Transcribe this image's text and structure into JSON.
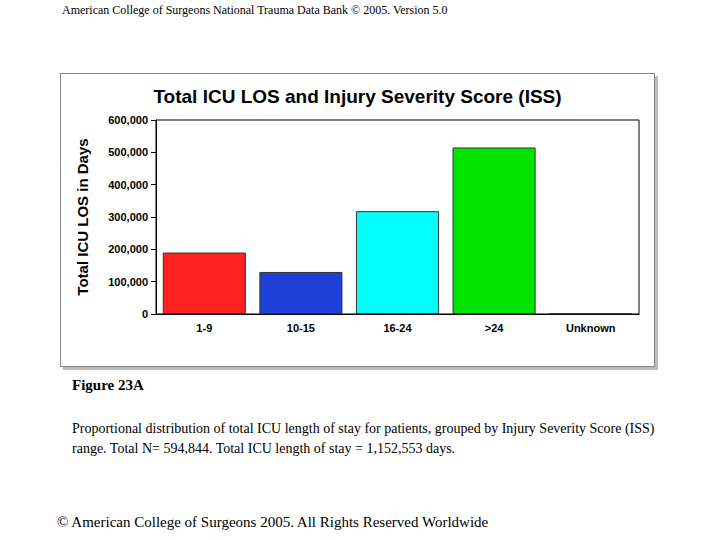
{
  "header": "American College of Surgeons National Trauma Data Bank © 2005. Version 5.0",
  "chart_data": {
    "type": "bar",
    "title": "Total ICU LOS and Injury Severity Score (ISS)",
    "y_label": "Total ICU LOS in Days",
    "categories": [
      "1-9",
      "10-15",
      "16-24",
      ">24",
      "Unknown"
    ],
    "values": [
      190000,
      130000,
      318000,
      515000,
      2000
    ],
    "colors": [
      "#ff2020",
      "#1e3ed8",
      "#00ffff",
      "#00e400",
      "#404040"
    ],
    "ylim": [
      0,
      600000
    ],
    "yticks": [
      0,
      {
        "value": 100000,
        "label": "100,000"
      },
      {
        "value": 200000,
        "label": "200,000"
      },
      {
        "value": 300000,
        "label": "300,000"
      },
      {
        "value": 400000,
        "label": "400,000"
      },
      {
        "value": 500000,
        "label": "500,000"
      },
      {
        "value": 600000,
        "label": "600,000"
      }
    ],
    "grid": false
  },
  "figure_label": "Figure 23A",
  "caption": "Proportional distribution of total ICU length of stay for patients, grouped by Injury Severity Score (ISS) range.  Total N= 594,844.  Total ICU length of stay  = 1,152,553 days.",
  "footer": "© American College of Surgeons 2005. All Rights Reserved Worldwide"
}
